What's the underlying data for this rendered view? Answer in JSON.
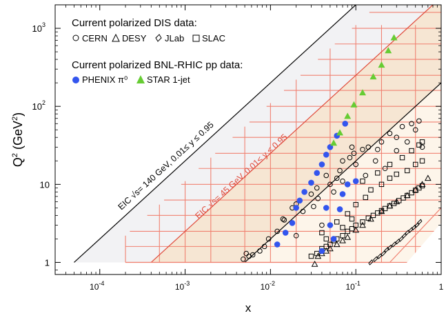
{
  "chart_data": {
    "type": "scatter",
    "xlabel": "x",
    "ylabel": "Q",
    "ylabel_sup": "2",
    "ylabel_unit": " (GeV",
    "ylabel_unit_sup": "2",
    "ylabel_close": ")",
    "x_scale": "log",
    "y_scale": "log",
    "xlim": [
      3e-05,
      1
    ],
    "ylim": [
      0.7,
      2000
    ],
    "x_ticks": [
      {
        "value": 0.0001,
        "label": "10",
        "exp": "-4"
      },
      {
        "value": 0.001,
        "label": "10",
        "exp": "-3"
      },
      {
        "value": 0.01,
        "label": "10",
        "exp": "-2"
      },
      {
        "value": 0.1,
        "label": "10",
        "exp": "-1"
      },
      {
        "value": 1,
        "label": "1",
        "exp": ""
      }
    ],
    "y_ticks": [
      {
        "value": 1,
        "label": "1",
        "exp": ""
      },
      {
        "value": 10,
        "label": "10",
        "exp": ""
      },
      {
        "value": 100,
        "label": "10",
        "exp": "2"
      },
      {
        "value": 1000,
        "label": "10",
        "exp": "3"
      }
    ],
    "legend": {
      "header_dis": "Current polarized DIS data:",
      "header_rhic": "Current polarized BNL-RHIC pp data:",
      "entries_dis": [
        {
          "symbol": "circle",
          "label": "CERN"
        },
        {
          "symbol": "triangle",
          "label": "DESY"
        },
        {
          "symbol": "diamond",
          "label": "JLab"
        },
        {
          "symbol": "square",
          "label": "SLAC"
        }
      ],
      "entries_rhic": [
        {
          "symbol": "filled-circle",
          "label": "PHENIX π⁰",
          "color": "#3355ee"
        },
        {
          "symbol": "filled-triangle",
          "label": "STAR 1-jet",
          "color": "#66cc33"
        }
      ],
      "placement": "top-left"
    },
    "annotations": [
      {
        "text": "EIC √s= 140 GeV, 0.01≤ y ≤ 0.95",
        "color": "#000000"
      },
      {
        "text": "EIC √s= 45 GeV, 0.01≤ y ≤ 0.95",
        "color": "#e04a3a"
      }
    ],
    "regions": {
      "eic140": {
        "x_min": 5e-05,
        "slope_line": [
          [
            5e-05,
            1
          ],
          [
            0.5,
            10000
          ]
        ],
        "fill": "#f2f2f4",
        "edge": "#000000"
      },
      "eic45": {
        "x_min": 0.0004,
        "slope_line": [
          [
            0.0004,
            1
          ],
          [
            1,
            2500
          ]
        ],
        "fill": "#f6e6d3",
        "edge": "#e04a3a"
      },
      "eic_upper_edge_140": [
        [
          5e-05,
          1
        ],
        [
          0.5,
          10000
        ]
      ],
      "eic_lower_edge_140": [
        [
          0.005,
          1
        ],
        [
          0.8,
          160
        ]
      ]
    },
    "series": [
      {
        "name": "CERN",
        "symbol": "circle",
        "color": "#000000",
        "points": [
          [
            0.0048,
            1.1
          ],
          [
            0.0052,
            1.3
          ],
          [
            0.0056,
            1.2
          ],
          [
            0.0062,
            1.25
          ],
          [
            0.0075,
            1.4
          ],
          [
            0.0085,
            1.6
          ],
          [
            0.0095,
            2.0
          ],
          [
            0.012,
            2.5
          ],
          [
            0.014,
            3.6
          ],
          [
            0.0145,
            3.5
          ],
          [
            0.018,
            5.0
          ],
          [
            0.02,
            5.6
          ],
          [
            0.024,
            4.5
          ],
          [
            0.03,
            7.5
          ],
          [
            0.032,
            5.2
          ],
          [
            0.035,
            9.0
          ],
          [
            0.036,
            6.6
          ],
          [
            0.045,
            13
          ],
          [
            0.05,
            10
          ],
          [
            0.06,
            12
          ],
          [
            0.065,
            15
          ],
          [
            0.07,
            20
          ],
          [
            0.085,
            22
          ],
          [
            0.09,
            30
          ],
          [
            0.095,
            25
          ],
          [
            0.12,
            28
          ],
          [
            0.14,
            30
          ],
          [
            0.18,
            28
          ],
          [
            0.2,
            35
          ],
          [
            0.25,
            45
          ],
          [
            0.3,
            27
          ],
          [
            0.35,
            55
          ],
          [
            0.45,
            60
          ],
          [
            0.55,
            65
          ],
          [
            0.6,
            30
          ],
          [
            0.02,
            2.2
          ],
          [
            0.04,
            3.0
          ],
          [
            0.055,
            8.0
          ],
          [
            0.07,
            11
          ],
          [
            0.1,
            18
          ],
          [
            0.13,
            13
          ],
          [
            0.17,
            20
          ],
          [
            0.22,
            16
          ],
          [
            0.3,
            40
          ],
          [
            0.4,
            35
          ],
          [
            0.5,
            50
          ]
        ]
      },
      {
        "name": "DESY",
        "symbol": "triangle",
        "color": "#000000",
        "points": [
          [
            0.033,
            0.95
          ],
          [
            0.036,
            1.2
          ],
          [
            0.04,
            1.3
          ],
          [
            0.045,
            1.4
          ],
          [
            0.05,
            1.5
          ],
          [
            0.06,
            1.7
          ],
          [
            0.07,
            1.9
          ],
          [
            0.08,
            2.1
          ],
          [
            0.1,
            2.6
          ],
          [
            0.12,
            3.0
          ],
          [
            0.15,
            3.6
          ],
          [
            0.2,
            4.5
          ],
          [
            0.25,
            5.3
          ],
          [
            0.3,
            6.0
          ],
          [
            0.4,
            7.2
          ],
          [
            0.5,
            8.5
          ],
          [
            0.6,
            10
          ],
          [
            0.7,
            12
          ]
        ]
      },
      {
        "name": "JLab",
        "symbol": "diamond",
        "color": "#000000",
        "points": [
          [
            0.15,
            1.0
          ],
          [
            0.17,
            1.1
          ],
          [
            0.19,
            1.2
          ],
          [
            0.21,
            1.3
          ],
          [
            0.23,
            1.45
          ],
          [
            0.25,
            1.55
          ],
          [
            0.28,
            1.7
          ],
          [
            0.31,
            1.85
          ],
          [
            0.34,
            2.0
          ],
          [
            0.37,
            2.2
          ],
          [
            0.4,
            2.4
          ],
          [
            0.44,
            2.6
          ],
          [
            0.48,
            2.8
          ],
          [
            0.52,
            3.0
          ],
          [
            0.56,
            3.3
          ]
        ]
      },
      {
        "name": "SLAC",
        "symbol": "square",
        "color": "#000000",
        "points": [
          [
            0.03,
            1.2
          ],
          [
            0.035,
            1.3
          ],
          [
            0.04,
            1.5
          ],
          [
            0.045,
            1.6
          ],
          [
            0.05,
            1.7
          ],
          [
            0.055,
            1.9
          ],
          [
            0.06,
            2.0
          ],
          [
            0.07,
            2.2
          ],
          [
            0.08,
            2.5
          ],
          [
            0.09,
            2.7
          ],
          [
            0.1,
            3.0
          ],
          [
            0.12,
            3.3
          ],
          [
            0.14,
            3.7
          ],
          [
            0.16,
            4.0
          ],
          [
            0.18,
            4.3
          ],
          [
            0.2,
            4.6
          ],
          [
            0.22,
            4.9
          ],
          [
            0.25,
            5.3
          ],
          [
            0.28,
            5.7
          ],
          [
            0.32,
            6.2
          ],
          [
            0.36,
            6.7
          ],
          [
            0.4,
            7.2
          ],
          [
            0.45,
            7.8
          ],
          [
            0.5,
            8.4
          ],
          [
            0.55,
            9.0
          ],
          [
            0.6,
            9.6
          ],
          [
            0.04,
            2.4
          ],
          [
            0.06,
            3.3
          ],
          [
            0.08,
            4.2
          ],
          [
            0.1,
            5.5
          ],
          [
            0.13,
            6.8
          ],
          [
            0.15,
            8.5
          ],
          [
            0.2,
            10
          ],
          [
            0.25,
            12
          ],
          [
            0.3,
            13.5
          ],
          [
            0.4,
            15
          ],
          [
            0.5,
            18
          ],
          [
            0.6,
            20
          ],
          [
            0.12,
            11
          ],
          [
            0.18,
            14
          ],
          [
            0.25,
            18
          ],
          [
            0.35,
            22
          ],
          [
            0.45,
            27
          ],
          [
            0.55,
            32
          ],
          [
            0.6,
            35
          ],
          [
            0.045,
            2.0
          ],
          [
            0.07,
            2.8
          ],
          [
            0.09,
            3.6
          ]
        ]
      },
      {
        "name": "PHENIX",
        "symbol": "filled-circle",
        "color": "#3355ee",
        "points": [
          [
            0.012,
            1.7
          ],
          [
            0.015,
            2.4
          ],
          [
            0.018,
            3.2
          ],
          [
            0.02,
            5.0
          ],
          [
            0.022,
            6.2
          ],
          [
            0.025,
            8.0
          ],
          [
            0.03,
            10.5
          ],
          [
            0.035,
            14
          ],
          [
            0.04,
            18
          ],
          [
            0.045,
            24
          ],
          [
            0.05,
            30
          ],
          [
            0.06,
            42
          ],
          [
            0.075,
            60
          ],
          [
            0.045,
            5.0
          ],
          [
            0.05,
            3.0
          ],
          [
            0.055,
            2.0
          ],
          [
            0.065,
            4.8
          ],
          [
            0.07,
            7.5
          ],
          [
            0.08,
            10
          ],
          [
            0.1,
            11
          ],
          [
            0.04,
            1.4
          ]
        ]
      },
      {
        "name": "STAR",
        "symbol": "filled-triangle",
        "color": "#66cc33",
        "points": [
          [
            0.055,
            34
          ],
          [
            0.065,
            46
          ],
          [
            0.08,
            75
          ],
          [
            0.095,
            105
          ],
          [
            0.12,
            150
          ],
          [
            0.16,
            240
          ],
          [
            0.2,
            340
          ],
          [
            0.24,
            520
          ],
          [
            0.28,
            760
          ]
        ]
      }
    ]
  }
}
